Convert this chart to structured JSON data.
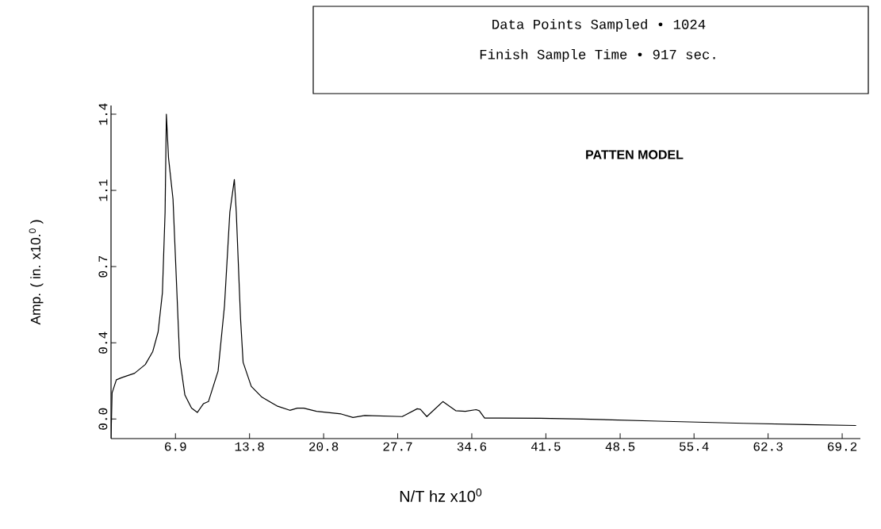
{
  "chart_data": {
    "type": "line",
    "annotations": [
      "Data Points Sampled • 1024",
      "Finish Sample Time •      917 sec.",
      "PATTEN MODEL"
    ],
    "xlabel": "N/T hz x10$^{0}$",
    "ylabel": "Amp. ( in. x10.$^{0}$ )",
    "x": [
      0.9,
      1.0,
      1.4,
      1.9,
      3.1,
      4.1,
      4.8,
      5.3,
      5.7,
      5.95,
      6.07,
      6.27,
      6.69,
      7.31,
      7.8,
      8.42,
      8.96,
      9.53,
      10.0,
      10.9,
      11.5,
      12.0,
      12.42,
      12.6,
      13.0,
      13.24,
      14.0,
      15.0,
      16.4,
      17.6,
      18.3,
      18.9,
      20.1,
      22.4,
      23.5,
      24.6,
      28.1,
      29.5,
      29.8,
      30.4,
      31.9,
      33.1,
      34.0,
      35.0,
      35.3,
      35.8,
      37.1,
      41.0,
      45.0,
      52.0,
      60.0,
      70.5
    ],
    "values": [
      -0.09,
      0.12,
      0.18,
      0.19,
      0.21,
      0.25,
      0.31,
      0.4,
      0.58,
      0.95,
      1.4,
      1.2,
      1.01,
      0.28,
      0.11,
      0.05,
      0.03,
      0.07,
      0.08,
      0.22,
      0.52,
      0.95,
      1.1,
      0.95,
      0.46,
      0.26,
      0.15,
      0.1,
      0.06,
      0.04,
      0.05,
      0.05,
      0.035,
      0.023,
      0.007,
      0.016,
      0.011,
      0.047,
      0.044,
      0.011,
      0.08,
      0.038,
      0.035,
      0.043,
      0.038,
      0.004,
      0.004,
      0.003,
      0.0,
      -0.01,
      -0.02,
      -0.03
    ],
    "color": "#000000",
    "xlim": [
      0.9,
      70.9
    ],
    "ylim": [
      -0.09,
      1.44
    ],
    "xticks": [
      {
        "value": 6.92,
        "label": "6.9"
      },
      {
        "value": 13.84,
        "label": "13.8"
      },
      {
        "value": 20.76,
        "label": "20.8"
      },
      {
        "value": 27.68,
        "label": "27.7"
      },
      {
        "value": 34.6,
        "label": "34.6"
      },
      {
        "value": 41.52,
        "label": "41.5"
      },
      {
        "value": 48.46,
        "label": "48.5"
      },
      {
        "value": 55.36,
        "label": "55.4"
      },
      {
        "value": 62.28,
        "label": "62.3"
      },
      {
        "value": 69.2,
        "label": "69.2"
      }
    ],
    "yticks": [
      {
        "value": 0,
        "label": "0.0"
      },
      {
        "value": 0.35,
        "label": "0.4"
      },
      {
        "value": 0.7,
        "label": "0.7"
      },
      {
        "value": 1.05,
        "label": "1.1"
      },
      {
        "value": 1.4,
        "label": "1.4"
      }
    ]
  }
}
